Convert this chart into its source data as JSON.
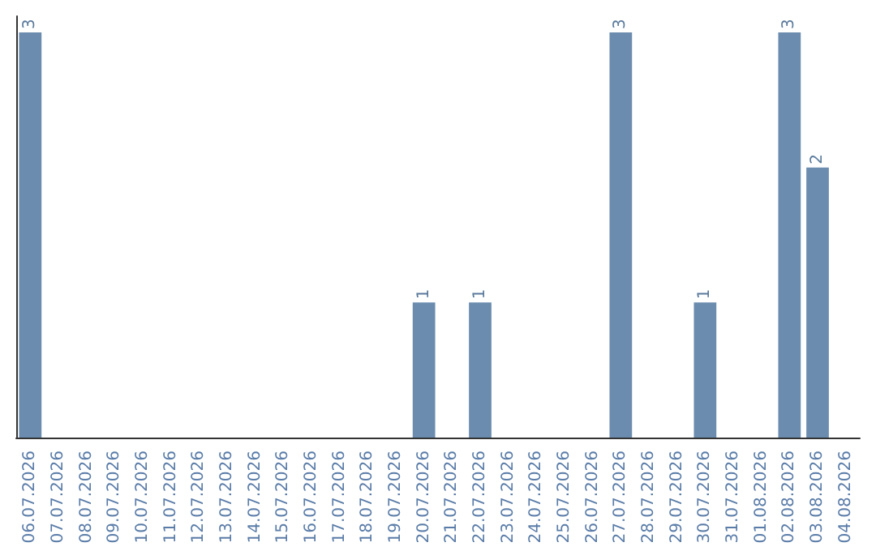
{
  "chart_data": {
    "type": "bar",
    "categories": [
      "06.07.2026",
      "07.07.2026",
      "08.07.2026",
      "09.07.2026",
      "10.07.2026",
      "11.07.2026",
      "12.07.2026",
      "13.07.2026",
      "14.07.2026",
      "15.07.2026",
      "16.07.2026",
      "17.07.2026",
      "18.07.2026",
      "19.07.2026",
      "20.07.2026",
      "21.07.2026",
      "22.07.2026",
      "23.07.2026",
      "24.07.2026",
      "25.07.2026",
      "26.07.2026",
      "27.07.2026",
      "28.07.2026",
      "29.07.2026",
      "30.07.2026",
      "31.07.2026",
      "01.08.2026",
      "02.08.2026",
      "03.08.2026",
      "04.08.2026"
    ],
    "values": [
      3,
      0,
      0,
      0,
      0,
      0,
      0,
      0,
      0,
      0,
      0,
      0,
      0,
      0,
      1,
      0,
      1,
      0,
      0,
      0,
      0,
      3,
      0,
      0,
      1,
      0,
      0,
      3,
      2,
      0
    ],
    "value_labels": [
      "3",
      null,
      null,
      null,
      null,
      null,
      null,
      null,
      null,
      null,
      null,
      null,
      null,
      null,
      "1",
      null,
      "1",
      null,
      null,
      null,
      null,
      "3",
      null,
      null,
      "1",
      null,
      null,
      "3",
      "2",
      null
    ],
    "color": "#6b8cae",
    "ylim": [
      0,
      3.12
    ],
    "tick_labels": "x"
  }
}
